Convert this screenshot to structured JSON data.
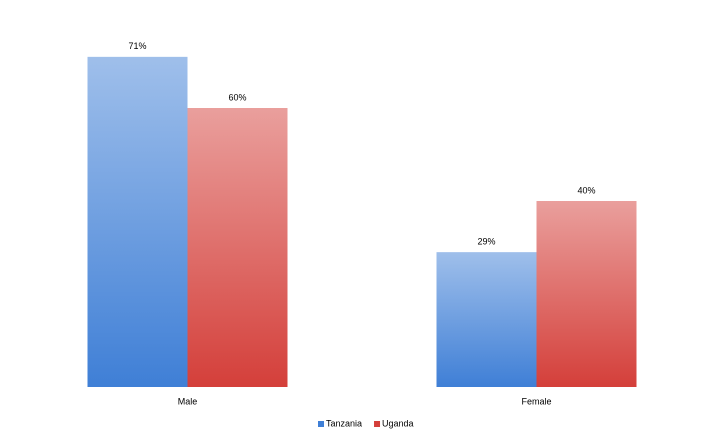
{
  "chart_data": {
    "type": "bar",
    "categories": [
      "Male",
      "Female"
    ],
    "series": [
      {
        "name": "Tanzania",
        "color": "#3f7fd6",
        "values": [
          71,
          29
        ],
        "value_labels": [
          "71%",
          "29%"
        ]
      },
      {
        "name": "Uganda",
        "color": "#d43f3a",
        "values": [
          60,
          40
        ],
        "value_labels": [
          "60%",
          "40%"
        ]
      }
    ],
    "ylim": [
      0,
      80
    ]
  }
}
